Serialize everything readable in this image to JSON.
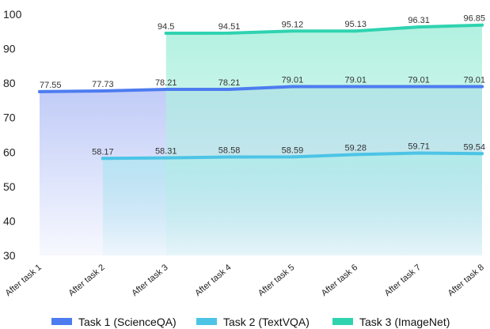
{
  "chart_data": {
    "type": "area",
    "x_categories": [
      "After task 1",
      "After task 2",
      "After task 3",
      "After task 4",
      "After task 5",
      "After task 6",
      "After task 7",
      "After task 8"
    ],
    "ylim": [
      30,
      100
    ],
    "yticks": [
      30,
      40,
      50,
      60,
      70,
      80,
      90,
      100
    ],
    "grid": false,
    "legend_position": "bottom",
    "series": [
      {
        "name": "Task 1 (ScienceQA)",
        "color": "#4d7cf0",
        "fill": "#bcc8f7",
        "values": [
          77.55,
          77.73,
          78.21,
          78.21,
          79.01,
          79.01,
          79.01,
          79.01
        ],
        "labels": [
          "77.55",
          "77.73",
          "78.21",
          "78.21",
          "79.01",
          "79.01",
          "79.01",
          "79.01"
        ]
      },
      {
        "name": "Task 2 (TextVQA)",
        "color": "#4cc4e6",
        "fill": "#b4e4f2",
        "values": [
          null,
          58.17,
          58.31,
          58.58,
          58.59,
          59.28,
          59.71,
          59.54
        ],
        "labels": [
          null,
          "58.17",
          "58.31",
          "58.58",
          "58.59",
          "59.28",
          "59.71",
          "59.54"
        ]
      },
      {
        "name": "Task 3 (ImageNet)",
        "color": "#2fd3b0",
        "fill": "#aef0df",
        "values": [
          null,
          null,
          94.5,
          94.51,
          95.12,
          95.13,
          96.31,
          96.85
        ],
        "labels": [
          null,
          null,
          "94.5",
          "94.51",
          "95.12",
          "95.13",
          "96.31",
          "96.85"
        ]
      }
    ]
  }
}
